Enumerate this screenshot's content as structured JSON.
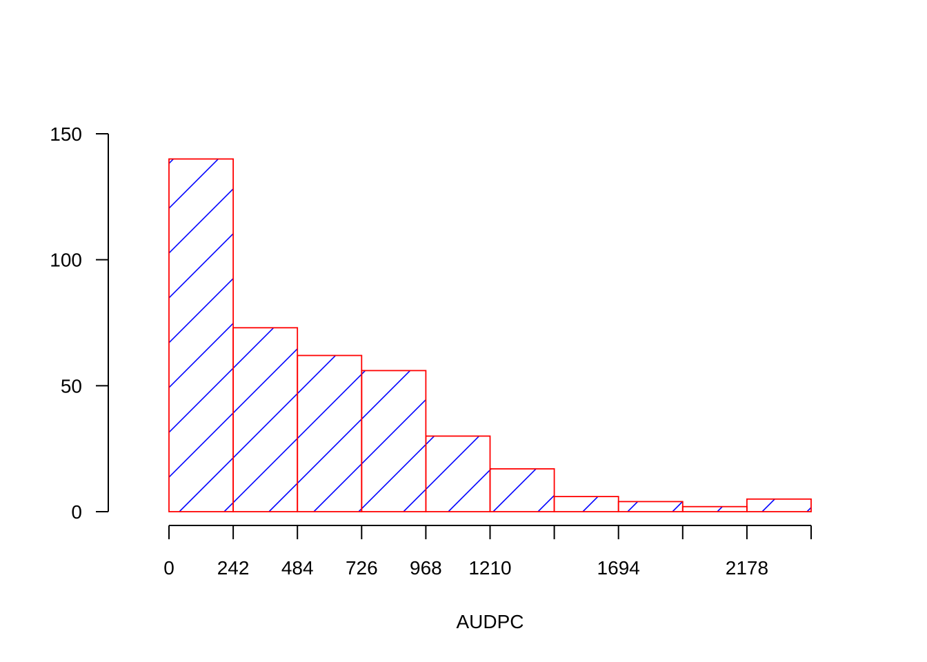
{
  "chart_data": {
    "type": "bar",
    "title": "",
    "xlabel": "AUDPC",
    "ylabel": "",
    "bin_edges": [
      0,
      242,
      484,
      726,
      968,
      1210,
      1452,
      1694,
      1936,
      2178,
      2420
    ],
    "values": [
      140,
      73,
      62,
      56,
      30,
      17,
      6,
      4,
      2,
      5
    ],
    "x_tick_labels": [
      "0",
      "242",
      "484",
      "726",
      "968",
      "1210",
      "",
      "1694",
      "",
      "2178",
      ""
    ],
    "y_ticks": [
      0,
      50,
      100,
      150
    ],
    "y_tick_labels": [
      "0",
      "50",
      "100",
      "150"
    ],
    "xlim": [
      0,
      2420
    ],
    "ylim": [
      0,
      150
    ],
    "grid": false,
    "fill": "diagonal hatch lines",
    "colors": {
      "border": "#ff0000",
      "hatch": "#0000ff",
      "axis": "#000000"
    }
  }
}
